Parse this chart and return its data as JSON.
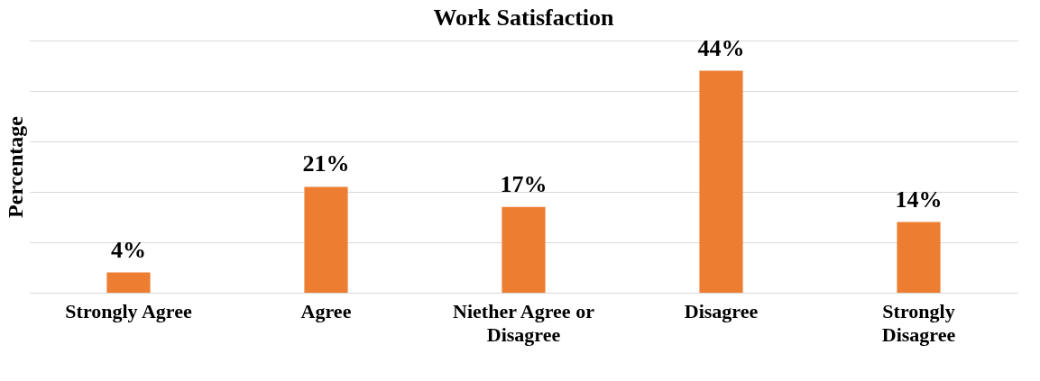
{
  "chart_data": {
    "type": "bar",
    "title": "Work Satisfaction",
    "ylabel": "Percentage",
    "categories": [
      "Strongly Agree",
      "Agree",
      "Niether Agree or Disagree",
      "Disagree",
      "Strongly Disagree"
    ],
    "values": [
      4,
      21,
      17,
      44,
      14
    ],
    "value_labels": [
      "4%",
      "21%",
      "17%",
      "44%",
      "14%"
    ],
    "color": "#ed7d31",
    "ylim": [
      0,
      50
    ],
    "yticks": [
      {
        "value": 0,
        "label": null
      },
      {
        "value": 10,
        "label": null
      },
      {
        "value": 20,
        "label": null
      },
      {
        "value": 30,
        "label": null
      },
      {
        "value": 40,
        "label": null
      },
      {
        "value": 50,
        "label": null
      }
    ],
    "tick_labels": "x",
    "grid": "y"
  }
}
